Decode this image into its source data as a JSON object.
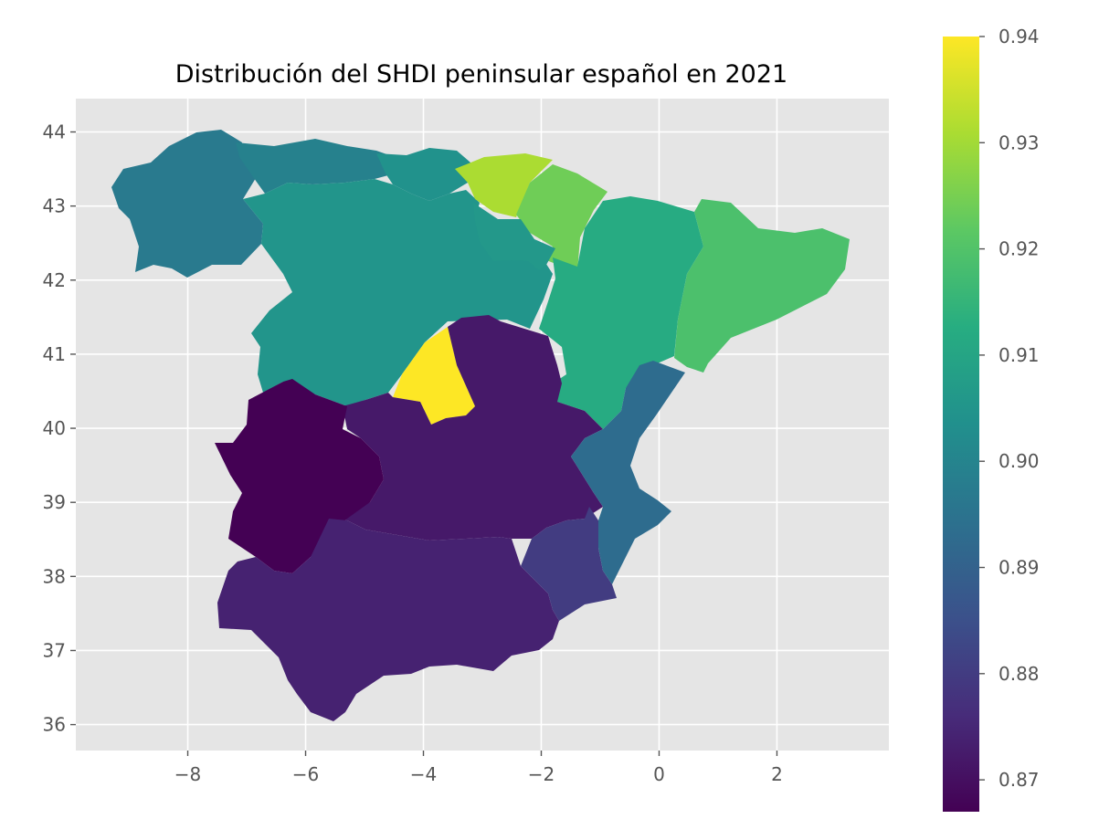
{
  "chart_data": {
    "type": "choropleth",
    "title": "Distribución del SHDI peninsular español en 2021",
    "xlabel": "",
    "ylabel": "",
    "xlim": [
      -9.9,
      3.9
    ],
    "ylim": [
      35.65,
      44.45
    ],
    "grid": true,
    "x_ticks": [
      {
        "value": -8,
        "label": "−8"
      },
      {
        "value": -6,
        "label": "−6"
      },
      {
        "value": -4,
        "label": "−4"
      },
      {
        "value": -2,
        "label": "−2"
      },
      {
        "value": 0,
        "label": "0"
      },
      {
        "value": 2,
        "label": "2"
      }
    ],
    "y_ticks": [
      {
        "value": 36,
        "label": "36"
      },
      {
        "value": 37,
        "label": "37"
      },
      {
        "value": 38,
        "label": "38"
      },
      {
        "value": 39,
        "label": "39"
      },
      {
        "value": 40,
        "label": "40"
      },
      {
        "value": 41,
        "label": "41"
      },
      {
        "value": 42,
        "label": "42"
      },
      {
        "value": 43,
        "label": "43"
      },
      {
        "value": 44,
        "label": "44"
      }
    ],
    "colorbar": {
      "colormap": "viridis",
      "min": 0.867,
      "max": 0.94,
      "ticks": [
        {
          "value": 0.87,
          "label": "0.87"
        },
        {
          "value": 0.88,
          "label": "0.88"
        },
        {
          "value": 0.89,
          "label": "0.89"
        },
        {
          "value": 0.9,
          "label": "0.90"
        },
        {
          "value": 0.91,
          "label": "0.91"
        },
        {
          "value": 0.92,
          "label": "0.92"
        },
        {
          "value": 0.93,
          "label": "0.93"
        },
        {
          "value": 0.94,
          "label": "0.94"
        }
      ]
    },
    "regions": [
      {
        "value": 0.897
      },
      {
        "value": 0.899
      },
      {
        "value": 0.904
      },
      {
        "value": 0.905
      },
      {
        "value": 0.931
      },
      {
        "value": 0.924
      },
      {
        "value": 0.906
      },
      {
        "value": 0.912
      },
      {
        "value": 0.919
      },
      {
        "value": 0.94
      },
      {
        "value": 0.872
      },
      {
        "value": 0.867
      },
      {
        "value": 0.874
      },
      {
        "value": 0.88
      },
      {
        "value": 0.893
      }
    ]
  }
}
